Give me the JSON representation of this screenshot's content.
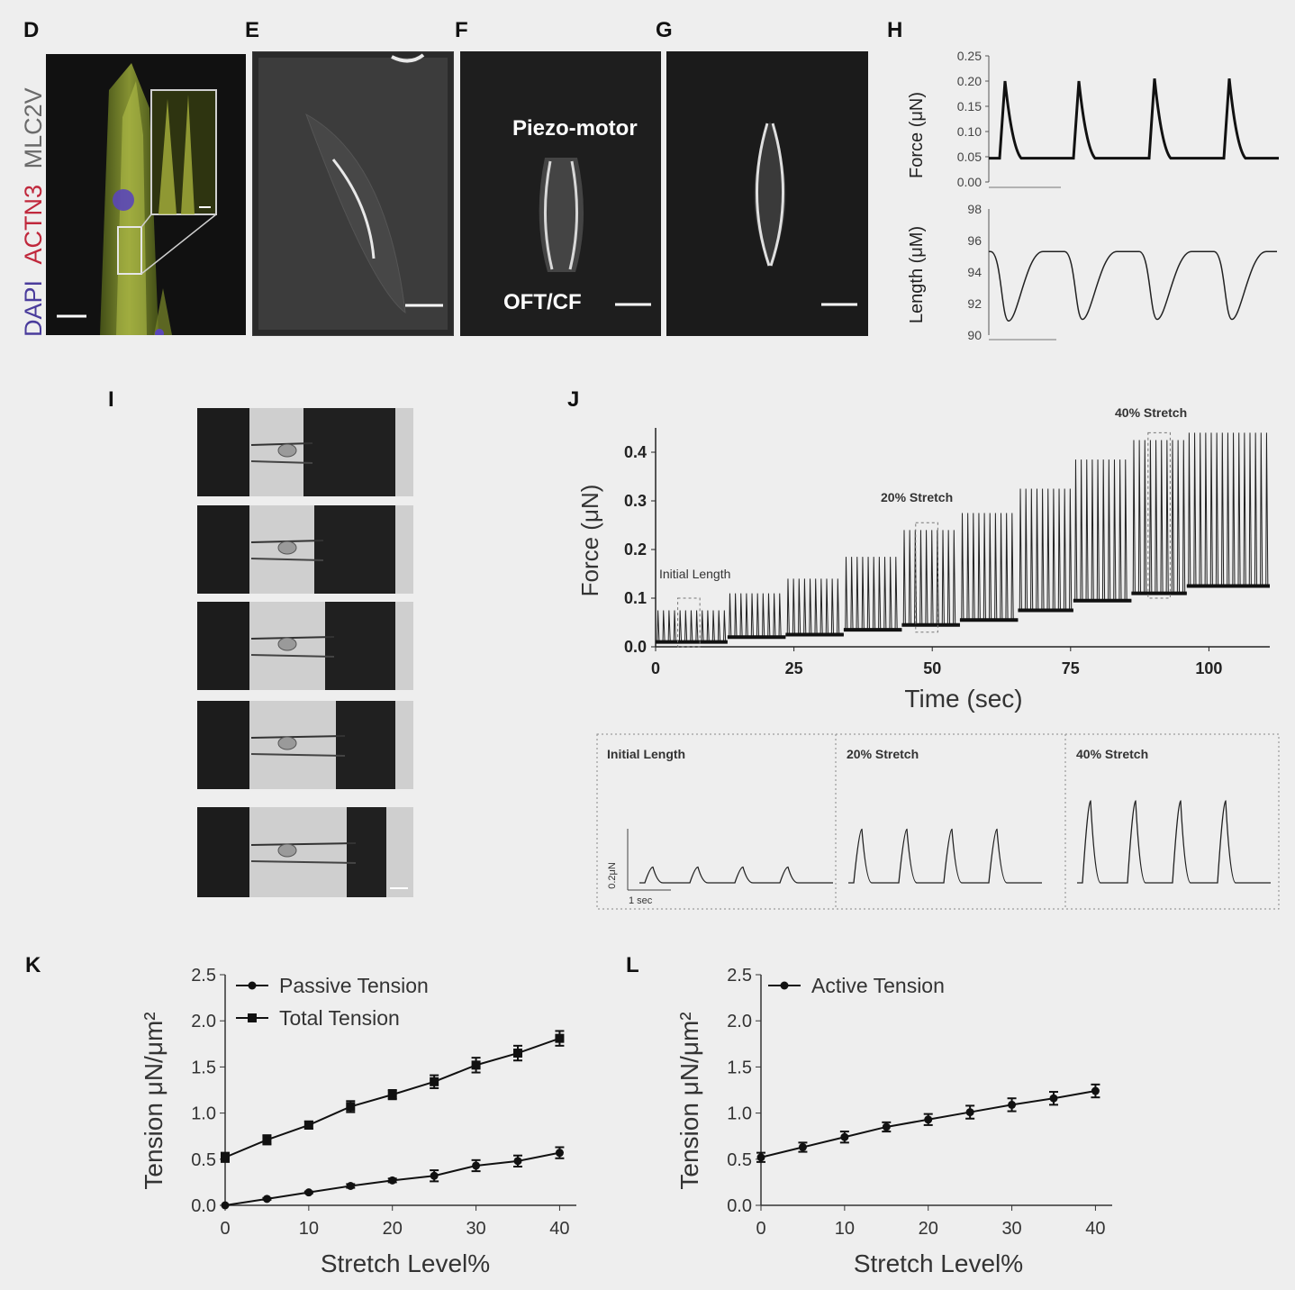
{
  "panels": {
    "D": {
      "label": "D",
      "channels": [
        {
          "name": "DAPI",
          "color": "#4a3c9c"
        },
        {
          "name": "ACTN3",
          "color": "#c0283c"
        },
        {
          "name": "MLC2V",
          "color": "#6a6a6a"
        }
      ]
    },
    "E": {
      "label": "E"
    },
    "F": {
      "label": "F",
      "top_annotation": "Piezo-motor",
      "bottom_annotation": "OFT/CF"
    },
    "G": {
      "label": "G"
    },
    "H": {
      "label": "H"
    },
    "I": {
      "label": "I"
    },
    "J": {
      "label": "J"
    },
    "K": {
      "label": "K"
    },
    "L": {
      "label": "L"
    }
  },
  "chart_data": [
    {
      "id": "H-force",
      "type": "line",
      "ylabel": "Force (μN)",
      "yticks": [
        "0.00",
        "0.05",
        "0.10",
        "0.15",
        "0.20",
        "0.25"
      ],
      "ylim": [
        0,
        0.25
      ],
      "baseline": 0.047,
      "peaks": [
        0.2,
        0.2,
        0.205,
        0.205
      ],
      "grid": false
    },
    {
      "id": "H-length",
      "type": "line",
      "ylabel": "Length (μM)",
      "yticks": [
        "90",
        "92",
        "94",
        "96",
        "98"
      ],
      "ylim": [
        90,
        98
      ],
      "baseline": 95.3,
      "troughs": [
        90.9,
        91.0,
        91.0,
        91.0
      ],
      "grid": false
    },
    {
      "id": "J-main",
      "type": "line",
      "xlabel": "Time (sec)",
      "ylabel": "Force (μN)",
      "xticks": [
        "0",
        "25",
        "50",
        "75",
        "100"
      ],
      "xlim": [
        0,
        111
      ],
      "yticks": [
        "0.0",
        "0.1",
        "0.2",
        "0.3",
        "0.4"
      ],
      "ylim": [
        0,
        0.45
      ],
      "annotations": [
        "Initial Length",
        "20% Stretch",
        "40% Stretch"
      ],
      "segments": [
        {
          "t_start": 0,
          "t_end": 13,
          "baseline": 0.01,
          "peak": 0.075
        },
        {
          "t_start": 13,
          "t_end": 23.5,
          "baseline": 0.02,
          "peak": 0.11
        },
        {
          "t_start": 23.5,
          "t_end": 34,
          "baseline": 0.025,
          "peak": 0.14
        },
        {
          "t_start": 34,
          "t_end": 44.5,
          "baseline": 0.035,
          "peak": 0.185
        },
        {
          "t_start": 44.5,
          "t_end": 55,
          "baseline": 0.045,
          "peak": 0.24
        },
        {
          "t_start": 55,
          "t_end": 65.5,
          "baseline": 0.055,
          "peak": 0.275
        },
        {
          "t_start": 65.5,
          "t_end": 75.5,
          "baseline": 0.075,
          "peak": 0.325
        },
        {
          "t_start": 75.5,
          "t_end": 86,
          "baseline": 0.095,
          "peak": 0.385
        },
        {
          "t_start": 86,
          "t_end": 96,
          "baseline": 0.11,
          "peak": 0.425
        },
        {
          "t_start": 96,
          "t_end": 111,
          "baseline": 0.125,
          "peak": 0.44
        }
      ],
      "grid": false
    },
    {
      "id": "J-insets",
      "type": "line",
      "scale_y": "0.2μN",
      "scale_x": "1 sec",
      "insets": [
        {
          "title": "Initial Length",
          "baseline": 0.02,
          "peak": 0.07
        },
        {
          "title": "20% Stretch",
          "baseline": 0.02,
          "peak": 0.19
        },
        {
          "title": "40% Stretch",
          "baseline": 0.02,
          "peak": 0.28
        }
      ]
    },
    {
      "id": "K",
      "type": "line",
      "xlabel": "Stretch Level%",
      "ylabel": "Tension μN/μm²",
      "xticks": [
        "0",
        "10",
        "20",
        "30",
        "40"
      ],
      "xlim": [
        0,
        42
      ],
      "yticks": [
        "0.0",
        "0.5",
        "1.0",
        "1.5",
        "2.0",
        "2.5"
      ],
      "ylim": [
        0,
        2.5
      ],
      "legend_position": "top-left",
      "x": [
        0,
        5,
        10,
        15,
        20,
        25,
        30,
        35,
        40
      ],
      "series": [
        {
          "name": "Passive Tension",
          "marker": "circle",
          "values": [
            0.0,
            0.07,
            0.14,
            0.21,
            0.27,
            0.32,
            0.43,
            0.48,
            0.57
          ],
          "errors": [
            0.0,
            0.01,
            0.01,
            0.02,
            0.02,
            0.06,
            0.06,
            0.06,
            0.06
          ]
        },
        {
          "name": "Total Tension",
          "marker": "square",
          "values": [
            0.52,
            0.71,
            0.87,
            1.07,
            1.2,
            1.34,
            1.52,
            1.65,
            1.81
          ],
          "errors": [
            0.05,
            0.05,
            0.04,
            0.06,
            0.05,
            0.07,
            0.08,
            0.08,
            0.08
          ]
        }
      ],
      "grid": false
    },
    {
      "id": "L",
      "type": "line",
      "xlabel": "Stretch Level%",
      "ylabel": "Tension μN/μm²",
      "xticks": [
        "0",
        "10",
        "20",
        "30",
        "40"
      ],
      "xlim": [
        0,
        42
      ],
      "yticks": [
        "0.0",
        "0.5",
        "1.0",
        "1.5",
        "2.0",
        "2.5"
      ],
      "ylim": [
        0,
        2.5
      ],
      "legend_position": "top-left",
      "x": [
        0,
        5,
        10,
        15,
        20,
        25,
        30,
        35,
        40
      ],
      "series": [
        {
          "name": "Active Tension",
          "marker": "circle",
          "values": [
            0.52,
            0.63,
            0.74,
            0.85,
            0.93,
            1.01,
            1.09,
            1.16,
            1.24
          ],
          "errors": [
            0.05,
            0.05,
            0.06,
            0.05,
            0.06,
            0.07,
            0.07,
            0.07,
            0.07
          ]
        }
      ],
      "grid": false
    }
  ]
}
